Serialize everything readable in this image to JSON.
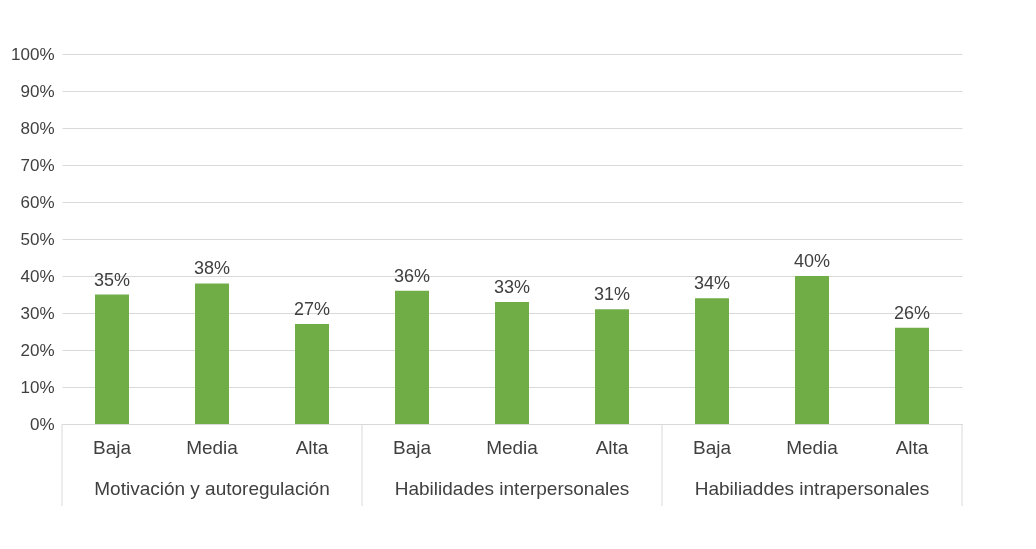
{
  "chart_data": {
    "type": "bar",
    "categories": [
      "Baja",
      "Media",
      "Alta",
      "Baja",
      "Media",
      "Alta",
      "Baja",
      "Media",
      "Alta"
    ],
    "values": [
      35,
      38,
      27,
      36,
      33,
      31,
      34,
      40,
      26
    ],
    "value_labels": [
      "35%",
      "38%",
      "27%",
      "36%",
      "33%",
      "31%",
      "34%",
      "40%",
      "26%"
    ],
    "color": "#70ad47",
    "ylim": [
      0,
      100
    ],
    "yticks": [
      {
        "value": 0,
        "label": "0%"
      },
      {
        "value": 10,
        "label": "10%"
      },
      {
        "value": 20,
        "label": "20%"
      },
      {
        "value": 30,
        "label": "30%"
      },
      {
        "value": 40,
        "label": "40%"
      },
      {
        "value": 50,
        "label": "50%"
      },
      {
        "value": 60,
        "label": "60%"
      },
      {
        "value": 70,
        "label": "70%"
      },
      {
        "value": 80,
        "label": "80%"
      },
      {
        "value": 90,
        "label": "90%"
      },
      {
        "value": 100,
        "label": "100%"
      }
    ],
    "grid": "y",
    "annotations": [
      "Motivación y autoregulación",
      "Habilidades interpersonales",
      "Habiliaddes intrapersonales"
    ]
  }
}
